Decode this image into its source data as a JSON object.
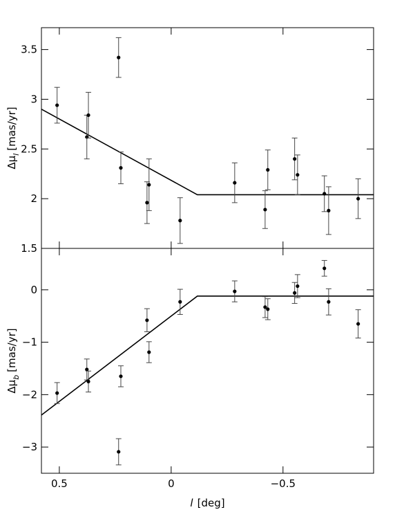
{
  "chart_data": [
    {
      "type": "scatter",
      "ylabel": "Δμ",
      "ylabel_sub": "l",
      "ylabel_unit": "[mas/yr]",
      "x": [
        0.51,
        0.377,
        0.37,
        0.235,
        0.225,
        0.108,
        0.099,
        -0.04,
        -0.284,
        -0.42,
        -0.432,
        -0.552,
        -0.565,
        -0.685,
        -0.704,
        -0.836
      ],
      "values": [
        2.94,
        2.62,
        2.84,
        3.42,
        2.31,
        1.96,
        2.14,
        1.78,
        2.16,
        1.89,
        2.29,
        2.4,
        2.24,
        2.05,
        1.88,
        2.0
      ],
      "errors": [
        0.18,
        0.22,
        0.23,
        0.2,
        0.16,
        0.21,
        0.26,
        0.23,
        0.2,
        0.19,
        0.2,
        0.21,
        0.2,
        0.18,
        0.24,
        0.2
      ],
      "color": "#000000",
      "model": {
        "x": [
          0.58,
          -0.117,
          -0.905
        ],
        "values": [
          2.9,
          2.04,
          2.04
        ]
      },
      "xlim": [
        0.58,
        -0.905
      ],
      "ylim": [
        1.5,
        3.72
      ],
      "yticks": [
        1.5,
        2,
        2.5,
        3,
        3.5
      ]
    },
    {
      "type": "scatter",
      "ylabel": "Δμ",
      "ylabel_sub": "b",
      "ylabel_unit": "[mas/yr]",
      "xlabel_var": "l",
      "xlabel_unit": "[deg]",
      "x": [
        0.51,
        0.377,
        0.37,
        0.225,
        0.235,
        0.108,
        0.099,
        -0.04,
        -0.284,
        -0.42,
        -0.432,
        -0.552,
        -0.565,
        -0.685,
        -0.704,
        -0.836
      ],
      "values": [
        -1.97,
        -1.52,
        -1.75,
        -1.65,
        -3.09,
        -0.58,
        -1.19,
        -0.23,
        -0.03,
        -0.33,
        -0.37,
        -0.06,
        0.07,
        0.41,
        -0.23,
        -0.65
      ],
      "errors": [
        0.2,
        0.2,
        0.2,
        0.2,
        0.25,
        0.22,
        0.2,
        0.24,
        0.2,
        0.2,
        0.2,
        0.2,
        0.22,
        0.15,
        0.25,
        0.27
      ],
      "color": "#000000",
      "model": {
        "x": [
          0.58,
          -0.117,
          -0.905
        ],
        "values": [
          -2.39,
          -0.12,
          -0.12
        ]
      },
      "xlim": [
        0.58,
        -0.905
      ],
      "ylim": [
        -3.5,
        0.79
      ],
      "xticks": [
        0.5,
        0,
        {
          "value": -0.5,
          "label": "−0.5"
        }
      ],
      "yticks": [
        {
          "value": -3,
          "label": "−3"
        },
        {
          "value": -2,
          "label": "−2"
        },
        {
          "value": -1,
          "label": "−1"
        },
        0
      ]
    }
  ]
}
